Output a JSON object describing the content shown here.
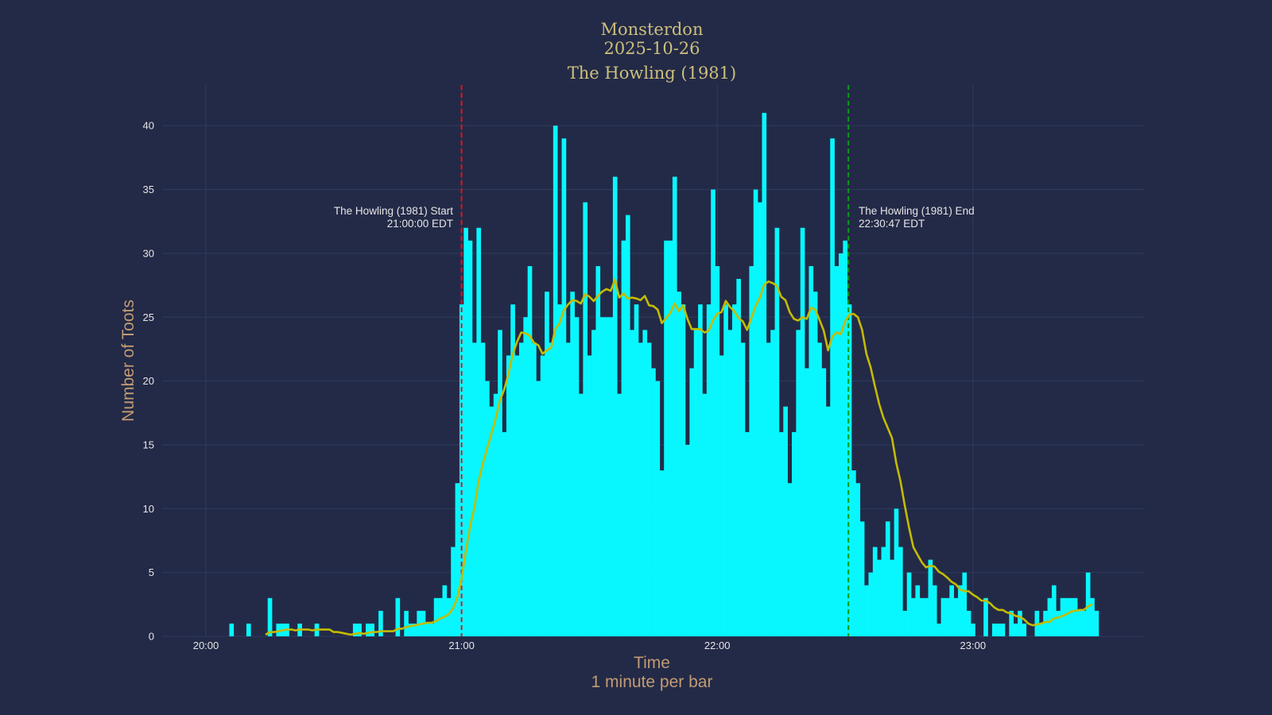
{
  "chart_data": {
    "type": "bar",
    "title_lines": [
      "Monsterdon",
      "2025-10-26",
      "The Howling (1981)"
    ],
    "xlabel_lines": [
      "Time",
      "1 minute per bar"
    ],
    "ylabel": "Number of Toots",
    "x_start": "20:00",
    "bar_interval_minutes": 1,
    "x_ticks": [
      "20:00",
      "21:00",
      "22:00",
      "23:00"
    ],
    "y_ticks": [
      0,
      5,
      10,
      15,
      20,
      25,
      30,
      35,
      40
    ],
    "ylim": [
      0,
      43
    ],
    "grid": true,
    "values": [
      0,
      0,
      0,
      0,
      0,
      0,
      1,
      0,
      0,
      0,
      1,
      0,
      0,
      0,
      0,
      3,
      0,
      1,
      1,
      1,
      0,
      0,
      1,
      0,
      0,
      0,
      1,
      0,
      0,
      0,
      0,
      0,
      0,
      0,
      0,
      1,
      1,
      0,
      1,
      1,
      0,
      2,
      0,
      0,
      0,
      3,
      0,
      2,
      1,
      1,
      2,
      2,
      1,
      1,
      3,
      3,
      4,
      3,
      7,
      12,
      26,
      32,
      31,
      23,
      32,
      23,
      20,
      18,
      19,
      24,
      16,
      22,
      26,
      22,
      23,
      25,
      29,
      23,
      20,
      22,
      27,
      23,
      40,
      26,
      39,
      23,
      27,
      25,
      19,
      34,
      22,
      24,
      29,
      25,
      25,
      25,
      36,
      19,
      31,
      33,
      24,
      26,
      23,
      24,
      23,
      21,
      20,
      13,
      31,
      31,
      36,
      27,
      26,
      15,
      21,
      24,
      26,
      19,
      26,
      35,
      29,
      22,
      26,
      24,
      26,
      28,
      23,
      16,
      29,
      35,
      34,
      41,
      23,
      24,
      32,
      16,
      18,
      12,
      16,
      24,
      32,
      21,
      29,
      27,
      23,
      21,
      18,
      39,
      29,
      30,
      31,
      26,
      13,
      12,
      9,
      4,
      5,
      7,
      6,
      7,
      9,
      6,
      10,
      7,
      2,
      5,
      3,
      4,
      3,
      3,
      6,
      4,
      1,
      3,
      3,
      4,
      3,
      4,
      5,
      2,
      1,
      0,
      0,
      3,
      0,
      1,
      1,
      1,
      0,
      2,
      1,
      2,
      1,
      0,
      0,
      2,
      1,
      2,
      3,
      4,
      2,
      3,
      3,
      3,
      3,
      2,
      2,
      5,
      3,
      2
    ],
    "overlay": "rolling average line",
    "annotations": [
      {
        "time": "21:00:00",
        "lines": [
          "The Howling (1981) Start",
          "21:00:00 EDT"
        ],
        "color": "#e0141e"
      },
      {
        "time": "22:30:47",
        "lines": [
          "The Howling (1981) End",
          "22:30:47 EDT"
        ],
        "color": "#0a9a1c"
      }
    ],
    "colors": {
      "background": "#232a47",
      "bars": "#08f7fe",
      "line": "#c4bc00",
      "grid": "#2f3a5e",
      "title": "#cdbf7c",
      "axis_label": "#c39b73"
    }
  }
}
